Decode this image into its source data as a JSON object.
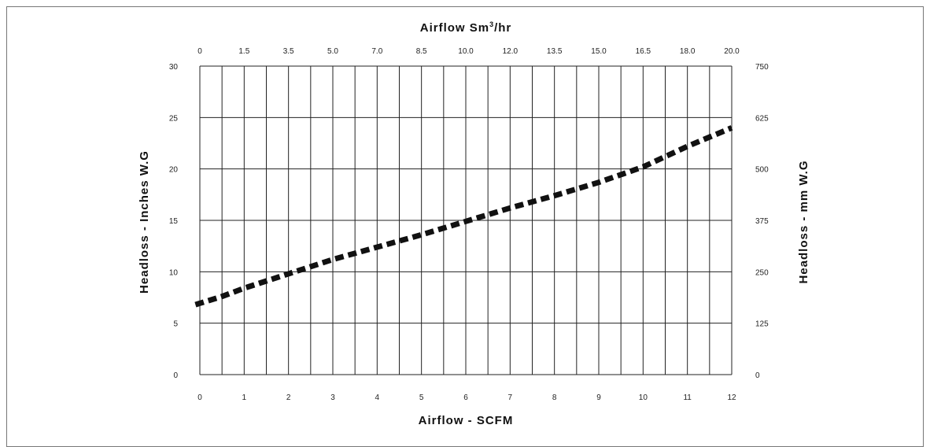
{
  "chart_data": {
    "type": "line",
    "top_xlabel": "Airflow Sm",
    "top_xlabel_sup": "3",
    "top_xlabel_suffix": "/hr",
    "xlabel": "Airflow - SCFM",
    "ylabel_left": "Headloss - Inches W.G",
    "ylabel_right": "Headloss - mm W.G",
    "x_ticks": [
      "0",
      "1",
      "2",
      "3",
      "4",
      "5",
      "6",
      "7",
      "8",
      "9",
      "10",
      "11",
      "12"
    ],
    "top_ticks": [
      "0",
      "1.5",
      "3.5",
      "5.0",
      "7.0",
      "8.5",
      "10.0",
      "12.0",
      "13.5",
      "15.0",
      "16.5",
      "18.0",
      "20.0"
    ],
    "y_left_ticks": [
      "0",
      "5",
      "10",
      "15",
      "20",
      "25",
      "30"
    ],
    "y_right_ticks": [
      "0",
      "125",
      "250",
      "375",
      "500",
      "625",
      "750"
    ],
    "xlim": [
      0,
      12
    ],
    "ylim": [
      0,
      30
    ],
    "grid": true,
    "series": [
      {
        "style": "dashed",
        "color": "#111111",
        "x": [
          -0.1,
          0.5,
          1.0,
          2.0,
          3.0,
          4.0,
          5.0,
          6.0,
          7.0,
          8.0,
          9.0,
          10.0,
          11.0,
          12.0
        ],
        "y": [
          6.8,
          7.6,
          8.4,
          9.8,
          11.2,
          12.4,
          13.6,
          14.9,
          16.2,
          17.4,
          18.7,
          20.2,
          22.2,
          24.0
        ]
      }
    ]
  }
}
